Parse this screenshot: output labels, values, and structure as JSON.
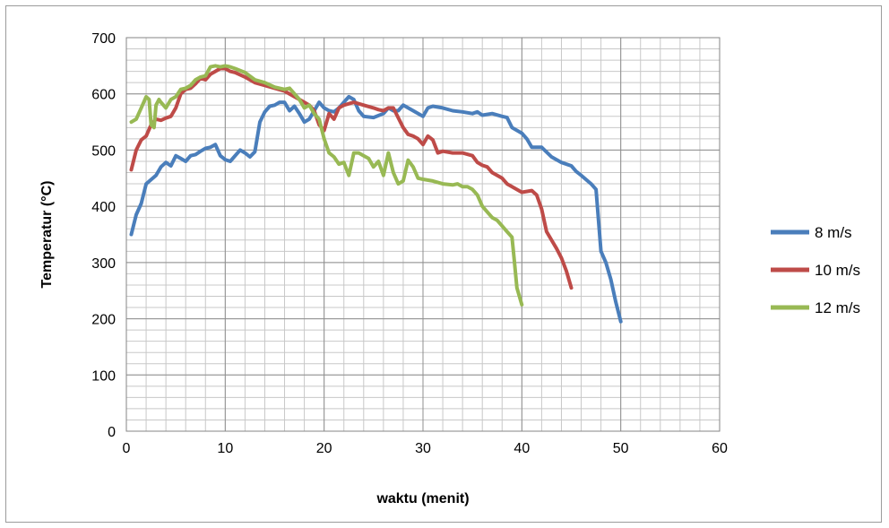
{
  "chart_data": {
    "type": "line",
    "xlabel": "waktu (menit)",
    "ylabel": "Temperatur (°C)",
    "xlim": [
      0,
      60
    ],
    "ylim": [
      0,
      700
    ],
    "x_ticks": [
      0,
      10,
      20,
      30,
      40,
      50,
      60
    ],
    "y_ticks": [
      0,
      100,
      200,
      300,
      400,
      500,
      600,
      700
    ],
    "grid": true,
    "legend_position": "right",
    "series": [
      {
        "name": "8 m/s",
        "color": "#4a7ebb",
        "points": [
          [
            0.5,
            350
          ],
          [
            1,
            385
          ],
          [
            1.5,
            405
          ],
          [
            2,
            440
          ],
          [
            3,
            455
          ],
          [
            3.5,
            470
          ],
          [
            4,
            478
          ],
          [
            4.5,
            472
          ],
          [
            5,
            490
          ],
          [
            5.5,
            485
          ],
          [
            6,
            480
          ],
          [
            6.5,
            490
          ],
          [
            7,
            492
          ],
          [
            7.5,
            498
          ],
          [
            8,
            503
          ],
          [
            8.5,
            505
          ],
          [
            9,
            510
          ],
          [
            9.5,
            490
          ],
          [
            10,
            483
          ],
          [
            10.5,
            480
          ],
          [
            11,
            490
          ],
          [
            11.5,
            500
          ],
          [
            12,
            495
          ],
          [
            12.5,
            488
          ],
          [
            13,
            497
          ],
          [
            13.5,
            550
          ],
          [
            14,
            568
          ],
          [
            14.5,
            578
          ],
          [
            15,
            580
          ],
          [
            15.5,
            585
          ],
          [
            16,
            585
          ],
          [
            16.5,
            570
          ],
          [
            17,
            578
          ],
          [
            17.5,
            565
          ],
          [
            18,
            550
          ],
          [
            18.5,
            555
          ],
          [
            19,
            570
          ],
          [
            19.5,
            585
          ],
          [
            20,
            575
          ],
          [
            20.5,
            570
          ],
          [
            21,
            568
          ],
          [
            21.5,
            575
          ],
          [
            22,
            585
          ],
          [
            22.5,
            595
          ],
          [
            23,
            590
          ],
          [
            23.5,
            570
          ],
          [
            24,
            560
          ],
          [
            25,
            558
          ],
          [
            26,
            565
          ],
          [
            26.5,
            575
          ],
          [
            27,
            570
          ],
          [
            27.5,
            570
          ],
          [
            28,
            580
          ],
          [
            29,
            570
          ],
          [
            30,
            560
          ],
          [
            30.5,
            575
          ],
          [
            31,
            578
          ],
          [
            32,
            575
          ],
          [
            33,
            570
          ],
          [
            34,
            568
          ],
          [
            35,
            565
          ],
          [
            35.5,
            568
          ],
          [
            36,
            562
          ],
          [
            37,
            565
          ],
          [
            38,
            560
          ],
          [
            38.5,
            558
          ],
          [
            39,
            540
          ],
          [
            40,
            530
          ],
          [
            40.5,
            520
          ],
          [
            41,
            505
          ],
          [
            42,
            505
          ],
          [
            43,
            488
          ],
          [
            44,
            478
          ],
          [
            45,
            472
          ],
          [
            45.5,
            462
          ],
          [
            46,
            455
          ],
          [
            47,
            440
          ],
          [
            47.5,
            430
          ],
          [
            48,
            320
          ],
          [
            48.5,
            300
          ],
          [
            49,
            270
          ],
          [
            49.5,
            230
          ],
          [
            50,
            195
          ]
        ]
      },
      {
        "name": "10 m/s",
        "color": "#be4b48",
        "points": [
          [
            0.5,
            465
          ],
          [
            1,
            500
          ],
          [
            1.5,
            518
          ],
          [
            2,
            525
          ],
          [
            2.5,
            545
          ],
          [
            3,
            555
          ],
          [
            3.5,
            553
          ],
          [
            4,
            557
          ],
          [
            4.5,
            560
          ],
          [
            5,
            575
          ],
          [
            5.5,
            600
          ],
          [
            6,
            608
          ],
          [
            6.5,
            610
          ],
          [
            7,
            618
          ],
          [
            7.5,
            628
          ],
          [
            8,
            625
          ],
          [
            8.5,
            635
          ],
          [
            9,
            640
          ],
          [
            9.5,
            645
          ],
          [
            10,
            645
          ],
          [
            10.5,
            640
          ],
          [
            11,
            638
          ],
          [
            12,
            630
          ],
          [
            13,
            620
          ],
          [
            14,
            615
          ],
          [
            15,
            610
          ],
          [
            16,
            605
          ],
          [
            17,
            595
          ],
          [
            18,
            585
          ],
          [
            18.5,
            580
          ],
          [
            19,
            570
          ],
          [
            19.5,
            545
          ],
          [
            20,
            535
          ],
          [
            20.5,
            565
          ],
          [
            21,
            555
          ],
          [
            21.5,
            575
          ],
          [
            22,
            580
          ],
          [
            23,
            585
          ],
          [
            24,
            580
          ],
          [
            25,
            575
          ],
          [
            25.5,
            572
          ],
          [
            26,
            570
          ],
          [
            26.5,
            575
          ],
          [
            27,
            575
          ],
          [
            28,
            540
          ],
          [
            28.5,
            528
          ],
          [
            29,
            525
          ],
          [
            29.5,
            520
          ],
          [
            30,
            510
          ],
          [
            30.5,
            525
          ],
          [
            31,
            518
          ],
          [
            31.5,
            495
          ],
          [
            32,
            498
          ],
          [
            33,
            495
          ],
          [
            34,
            495
          ],
          [
            35,
            490
          ],
          [
            35.5,
            478
          ],
          [
            36,
            473
          ],
          [
            36.5,
            470
          ],
          [
            37,
            460
          ],
          [
            38,
            450
          ],
          [
            38.5,
            440
          ],
          [
            39,
            435
          ],
          [
            40,
            425
          ],
          [
            41,
            428
          ],
          [
            41.5,
            420
          ],
          [
            42,
            395
          ],
          [
            42.5,
            355
          ],
          [
            43,
            340
          ],
          [
            43.5,
            325
          ],
          [
            44,
            308
          ],
          [
            44.5,
            285
          ],
          [
            45,
            255
          ]
        ]
      },
      {
        "name": "12 m/s",
        "color": "#98b954",
        "points": [
          [
            0.5,
            550
          ],
          [
            1,
            555
          ],
          [
            1.5,
            575
          ],
          [
            2,
            595
          ],
          [
            2.3,
            590
          ],
          [
            2.5,
            545
          ],
          [
            2.8,
            540
          ],
          [
            3,
            580
          ],
          [
            3.3,
            590
          ],
          [
            3.5,
            585
          ],
          [
            4,
            575
          ],
          [
            4.5,
            590
          ],
          [
            5,
            595
          ],
          [
            5.5,
            608
          ],
          [
            6,
            610
          ],
          [
            6.5,
            615
          ],
          [
            7,
            625
          ],
          [
            7.5,
            630
          ],
          [
            8,
            632
          ],
          [
            8.5,
            648
          ],
          [
            9,
            650
          ],
          [
            9.5,
            648
          ],
          [
            10,
            650
          ],
          [
            10.5,
            648
          ],
          [
            11,
            645
          ],
          [
            12,
            638
          ],
          [
            13,
            625
          ],
          [
            14,
            620
          ],
          [
            15,
            612
          ],
          [
            16,
            608
          ],
          [
            16.5,
            610
          ],
          [
            17,
            600
          ],
          [
            17.5,
            590
          ],
          [
            18,
            575
          ],
          [
            18.5,
            580
          ],
          [
            19,
            565
          ],
          [
            19.5,
            555
          ],
          [
            20,
            520
          ],
          [
            20.5,
            495
          ],
          [
            21,
            488
          ],
          [
            21.5,
            475
          ],
          [
            22,
            478
          ],
          [
            22.5,
            455
          ],
          [
            23,
            495
          ],
          [
            23.5,
            495
          ],
          [
            24,
            490
          ],
          [
            24.5,
            485
          ],
          [
            25,
            470
          ],
          [
            25.5,
            480
          ],
          [
            26,
            455
          ],
          [
            26.5,
            495
          ],
          [
            27,
            460
          ],
          [
            27.5,
            440
          ],
          [
            28,
            445
          ],
          [
            28.5,
            482
          ],
          [
            29,
            470
          ],
          [
            29.5,
            450
          ],
          [
            30,
            448
          ],
          [
            31,
            445
          ],
          [
            32,
            440
          ],
          [
            33,
            438
          ],
          [
            33.5,
            440
          ],
          [
            34,
            435
          ],
          [
            34.5,
            435
          ],
          [
            35,
            430
          ],
          [
            35.5,
            420
          ],
          [
            36,
            400
          ],
          [
            36.5,
            390
          ],
          [
            37,
            380
          ],
          [
            37.5,
            375
          ],
          [
            38,
            365
          ],
          [
            38.5,
            355
          ],
          [
            39,
            345
          ],
          [
            39.2,
            310
          ],
          [
            39.5,
            255
          ],
          [
            40,
            225
          ]
        ]
      }
    ]
  }
}
